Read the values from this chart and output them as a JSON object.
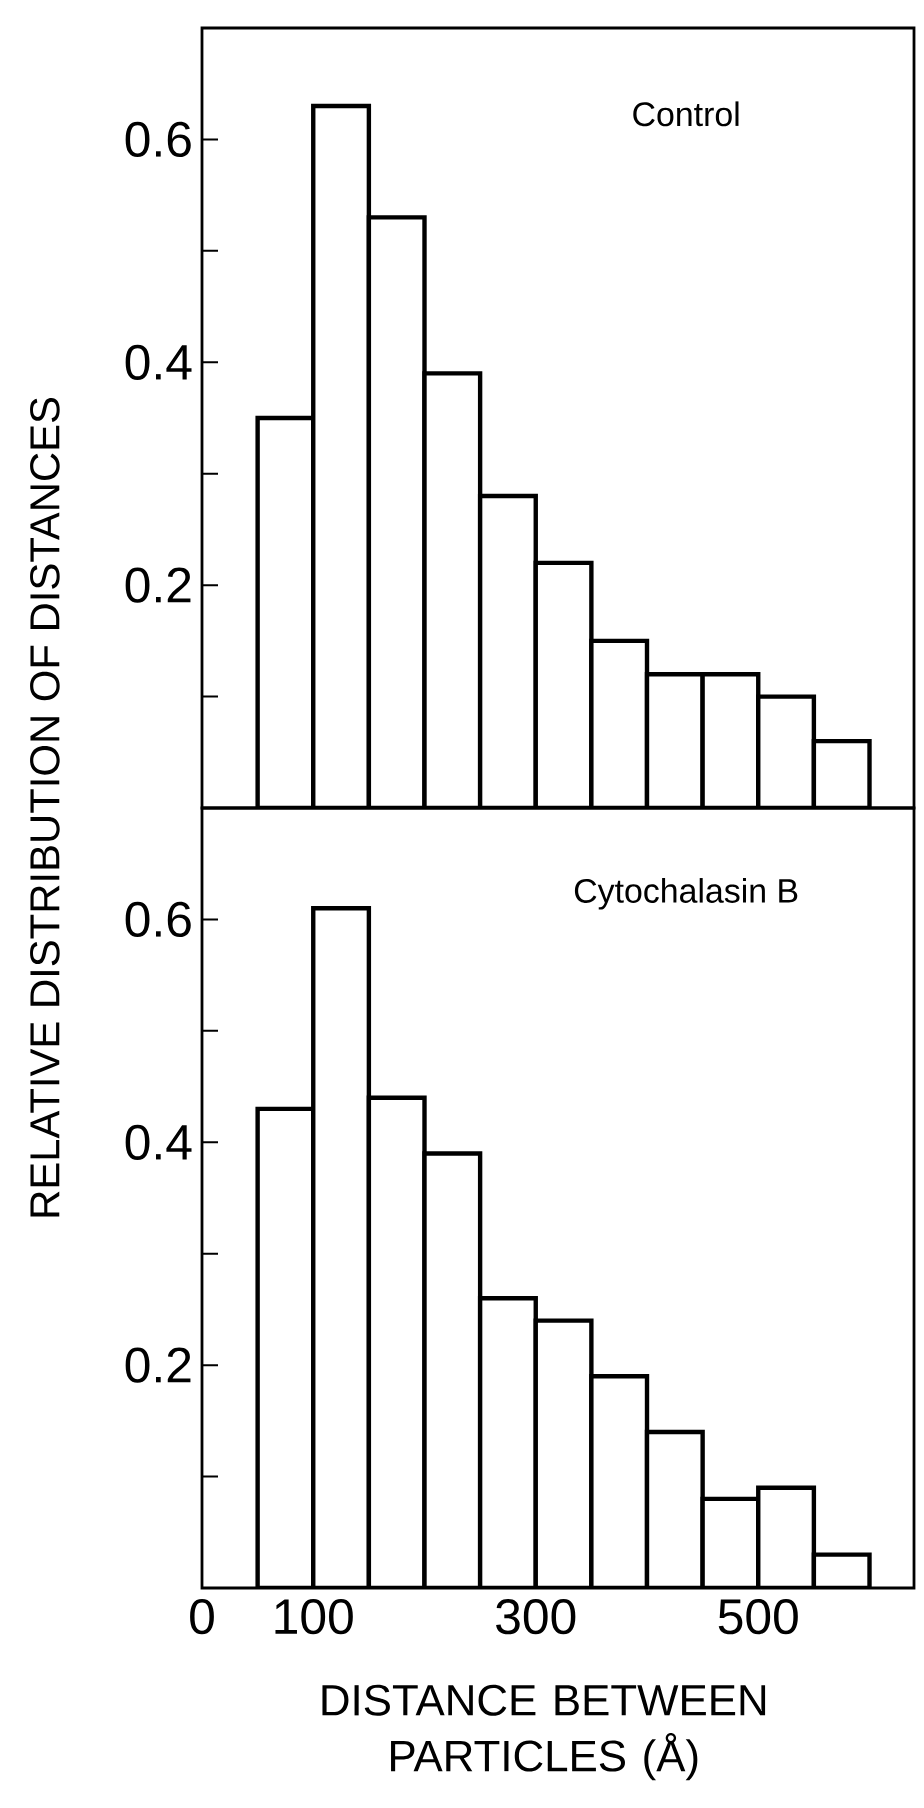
{
  "chart_data": [
    {
      "type": "histogram",
      "ylabel": "RELATIVE DISTRIBUTION OF DISTANCES",
      "annotations": [
        "Control"
      ],
      "color": "#000000",
      "bins": [
        50,
        100,
        150,
        200,
        250,
        300,
        350,
        400,
        450,
        500,
        550,
        600
      ],
      "values": [
        0.35,
        0.63,
        0.53,
        0.39,
        0.28,
        0.22,
        0.15,
        0.12,
        0.12,
        0.1,
        0.06
      ],
      "xlim": [
        0,
        640
      ],
      "ylim": [
        0,
        0.7
      ],
      "xticks": [
        {
          "value": 0,
          "label": null
        },
        {
          "value": 100,
          "label": null
        },
        {
          "value": 200,
          "label": null
        },
        {
          "value": 300,
          "label": null
        },
        {
          "value": 400,
          "label": null
        },
        {
          "value": 500,
          "label": null
        }
      ],
      "yticks": [
        {
          "value": 0.1,
          "label": null
        },
        0.2,
        {
          "value": 0.3,
          "label": null
        },
        0.4,
        {
          "value": 0.5,
          "label": null
        },
        0.6
      ],
      "tick_labels": "y"
    },
    {
      "type": "histogram",
      "xlabel": "DISTANCE BETWEEN PARTICLES (Å)",
      "annotations": [
        "Cytochalasin B"
      ],
      "color": "#000000",
      "bins": [
        50,
        100,
        150,
        200,
        250,
        300,
        350,
        400,
        450,
        500,
        550,
        600
      ],
      "values": [
        0.43,
        0.61,
        0.44,
        0.39,
        0.26,
        0.24,
        0.19,
        0.14,
        0.08,
        0.09,
        0.03
      ],
      "xlim": [
        0,
        640
      ],
      "ylim": [
        0,
        0.7
      ],
      "xticks": [
        0,
        100,
        {
          "value": 200,
          "label": null
        },
        300,
        {
          "value": 400,
          "label": null
        },
        500
      ],
      "yticks": [
        {
          "value": 0.1,
          "label": null
        },
        0.2,
        {
          "value": 0.3,
          "label": null
        },
        0.4,
        {
          "value": 0.5,
          "label": null
        },
        0.6
      ]
    }
  ]
}
